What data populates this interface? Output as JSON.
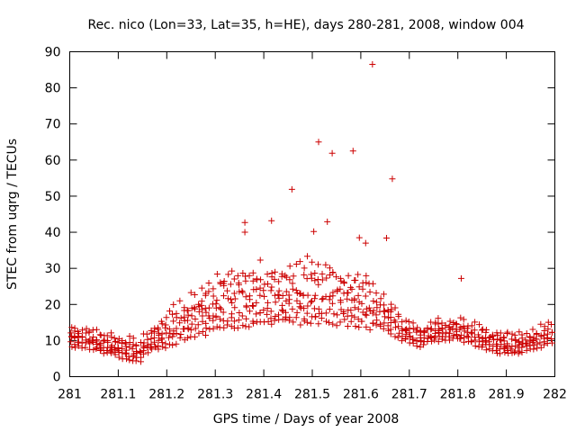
{
  "chart_data": {
    "type": "scatter",
    "title": "Rec. nico (Lon=33, Lat=35, h=HE), days 280-281, 2008, window 004",
    "xlabel": "GPS time / Days of year 2008",
    "ylabel": "STEC from uqrg / TECUs",
    "xlim": [
      281,
      282
    ],
    "ylim": [
      0,
      90
    ],
    "x_ticks": [
      281,
      281.1,
      281.2,
      281.3,
      281.4,
      281.5,
      281.6,
      281.7,
      281.8,
      281.9,
      282
    ],
    "y_ticks": [
      0,
      10,
      20,
      30,
      40,
      50,
      60,
      70,
      80,
      90
    ],
    "grid": false,
    "legend": "none",
    "marker": "+",
    "color": "#cc0000",
    "outliers": [
      {
        "x": 281.624,
        "y": 86.5
      },
      {
        "x": 281.513,
        "y": 65.0
      },
      {
        "x": 281.584,
        "y": 62.5
      },
      {
        "x": 281.541,
        "y": 61.9
      },
      {
        "x": 281.665,
        "y": 54.8
      },
      {
        "x": 281.458,
        "y": 51.9
      },
      {
        "x": 281.416,
        "y": 43.2
      },
      {
        "x": 281.361,
        "y": 42.7
      },
      {
        "x": 281.531,
        "y": 42.9
      },
      {
        "x": 281.361,
        "y": 40.0
      },
      {
        "x": 281.503,
        "y": 40.2
      },
      {
        "x": 281.597,
        "y": 38.5
      },
      {
        "x": 281.653,
        "y": 38.4
      },
      {
        "x": 281.61,
        "y": 37.0
      },
      {
        "x": 281.807,
        "y": 27.2
      }
    ],
    "series_note": "dense band of ~9 satellite tracks: lower envelope ~5-13 TECU, upper tracks ~10-35 TECU peaking near 281.5"
  }
}
